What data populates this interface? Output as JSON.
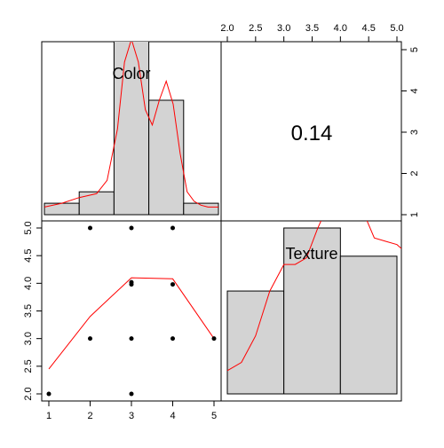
{
  "chart_data": [
    {
      "panel": "top-left",
      "type": "bar",
      "variable_label": "Color",
      "bins": [
        [
          0.5,
          1.5
        ],
        [
          1.5,
          2.5
        ],
        [
          2.5,
          3.5
        ],
        [
          3.5,
          4.5
        ],
        [
          4.5,
          5.5
        ]
      ],
      "heights": [
        0.06,
        0.12,
        1.0,
        0.6,
        0.06
      ],
      "density_curve": {
        "x": [
          0.5,
          1.0,
          1.5,
          2.0,
          2.3,
          2.6,
          2.8,
          3.0,
          3.2,
          3.4,
          3.6,
          3.8,
          4.0,
          4.2,
          4.4,
          4.6,
          4.8,
          5.0,
          5.2,
          5.5
        ],
        "y": [
          0.04,
          0.06,
          0.09,
          0.11,
          0.18,
          0.45,
          0.8,
          0.92,
          0.8,
          0.55,
          0.47,
          0.6,
          0.7,
          0.58,
          0.32,
          0.12,
          0.07,
          0.05,
          0.04,
          0.04
        ]
      },
      "x_range": [
        0.5,
        5.5
      ],
      "color": "#d3d3d3",
      "curve_color": "#ff0000"
    },
    {
      "panel": "top-right",
      "type": "table",
      "correlation_text": "0.14",
      "top_axis_ticks": [
        "2.0",
        "2.5",
        "3.0",
        "3.5",
        "4.0",
        "4.5",
        "5.0"
      ],
      "right_axis_ticks": [
        "1",
        "2",
        "3",
        "4",
        "5"
      ]
    },
    {
      "panel": "bottom-left",
      "type": "scatter",
      "x": [
        1,
        2,
        2,
        3,
        3,
        3,
        3,
        3,
        4,
        4,
        4,
        5
      ],
      "y": [
        2,
        3,
        5,
        2,
        3,
        3.98,
        4.02,
        5,
        3,
        3.98,
        5,
        3
      ],
      "smooth_line": {
        "x": [
          1,
          2,
          3,
          4,
          5
        ],
        "y": [
          2.45,
          3.4,
          4.1,
          4.08,
          3.0
        ]
      },
      "xlim": [
        0.8,
        5.2
      ],
      "ylim": [
        1.9,
        5.1
      ],
      "x_ticks": [
        "1",
        "2",
        "3",
        "4",
        "5"
      ],
      "left_axis_ticks": [
        "2.0",
        "2.5",
        "3.0",
        "3.5",
        "4.0",
        "4.5",
        "5.0"
      ],
      "point_color": "#000000",
      "line_color": "#ff0000"
    },
    {
      "panel": "bottom-right",
      "type": "bar",
      "variable_label": "Texture",
      "bins": [
        [
          2.0,
          3.0
        ],
        [
          3.0,
          4.0
        ],
        [
          4.0,
          5.0
        ]
      ],
      "heights": [
        0.62,
        1.0,
        0.83
      ],
      "density_curve": {
        "x": [
          2.0,
          2.25,
          2.5,
          2.75,
          3.0,
          3.2,
          3.4,
          3.6,
          3.8,
          3.9,
          4.0,
          4.2,
          4.4,
          4.6,
          4.8,
          5.0,
          5.2
        ],
        "y": [
          0.14,
          0.19,
          0.35,
          0.62,
          0.78,
          0.78,
          0.82,
          1.0,
          1.15,
          1.25,
          1.28,
          1.28,
          1.1,
          0.94,
          0.92,
          0.9,
          0.84
        ]
      },
      "x_range": [
        1.9,
        5.2
      ],
      "color": "#d3d3d3",
      "curve_color": "#ff0000"
    }
  ]
}
